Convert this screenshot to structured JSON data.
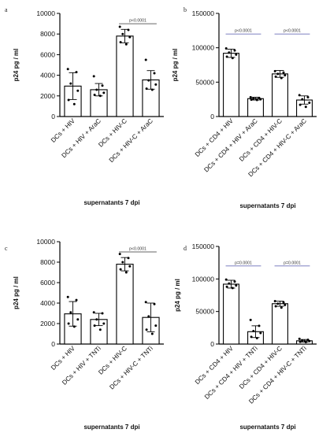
{
  "chart_data": [
    {
      "panel": "a",
      "type": "bar",
      "categories": [
        "DCs + HIV",
        "DCs + HIV + AraC",
        "DCs + HIV-C",
        "DCs + HIV-C + AraC"
      ],
      "values": [
        2950,
        2600,
        7800,
        3550
      ],
      "errors": [
        1300,
        600,
        650,
        900
      ],
      "points": [
        [
          4600,
          4300,
          3200,
          2500,
          1600,
          1200
        ],
        [
          3900,
          3000,
          2600,
          2300,
          2100,
          2000
        ],
        [
          8700,
          8400,
          8000,
          7700,
          7200,
          7000
        ],
        [
          5500,
          4200,
          3500,
          3100,
          2700,
          2600
        ]
      ],
      "ylabel": "p24 pg / ml",
      "xlabel": "supernatants 7 dpi",
      "ylim": [
        0,
        10000
      ],
      "yticks": [
        "0",
        "2000",
        "4000",
        "6000",
        "8000",
        "10000"
      ],
      "comparisons": [
        {
          "from": 2,
          "to": 3,
          "label": "p<0.0001",
          "y": 9000,
          "color": "#333333"
        }
      ]
    },
    {
      "panel": "b",
      "type": "bar",
      "categories": [
        "DCs + CD4 + HIV",
        "DCs + CD4 + HIV + AraC",
        "DCs + CD4 + HIV-C",
        "DCs + CD4 + HIV-C + AraC"
      ],
      "values": [
        92000,
        26000,
        62000,
        24000
      ],
      "errors": [
        6000,
        2000,
        5000,
        6000
      ],
      "points": [
        [
          99000,
          96000,
          93000,
          90000,
          87000,
          85000
        ],
        [
          28000,
          27000,
          26000,
          25000,
          24500,
          24000
        ],
        [
          66000,
          64000,
          62000,
          60000,
          58000,
          56000
        ],
        [
          31000,
          28000,
          25000,
          20000,
          17000,
          14000
        ]
      ],
      "ylabel": "p24 pg / ml",
      "xlabel": "supernatants 7 dpi",
      "ylim": [
        0,
        150000
      ],
      "yticks": [
        "0",
        "50000",
        "100000",
        "150000"
      ],
      "comparisons": [
        {
          "from": 0,
          "to": 1,
          "label": "p<0.0001",
          "y": 120000,
          "color": "#6b6fb8"
        },
        {
          "from": 2,
          "to": 3,
          "label": "p<0.0001",
          "y": 120000,
          "color": "#6b6fb8"
        }
      ]
    },
    {
      "panel": "c",
      "type": "bar",
      "categories": [
        "DCs + HIV",
        "DCs + HIV + TNTi",
        "DCs + HIV-C",
        "DCs + HIV-C + TNTi"
      ],
      "values": [
        2950,
        2400,
        7800,
        2600
      ],
      "errors": [
        1200,
        600,
        650,
        1400
      ],
      "points": [
        [
          4600,
          4300,
          3100,
          2400,
          2000,
          1700
        ],
        [
          3100,
          3000,
          2400,
          2000,
          1800,
          1400
        ],
        [
          8800,
          8400,
          8000,
          7600,
          7300,
          7000
        ],
        [
          4100,
          3900,
          2700,
          1800,
          1400,
          1000
        ]
      ],
      "ylabel": "p24 pg / ml",
      "xlabel": "supernatants 7 dpi",
      "ylim": [
        0,
        10000
      ],
      "yticks": [
        "0",
        "2000",
        "4000",
        "6000",
        "8000",
        "10000"
      ],
      "comparisons": [
        {
          "from": 2,
          "to": 3,
          "label": "p<0.0001",
          "y": 9000,
          "color": "#333333"
        }
      ]
    },
    {
      "panel": "d",
      "type": "bar",
      "categories": [
        "DCs + CD4 + HIV",
        "DCs + CD4 + HIV + TNTi",
        "DCs + CD4 + HIV-C",
        "DCs + CD4 + HIV-C + TNTi"
      ],
      "values": [
        92000,
        19000,
        62000,
        5000
      ],
      "errors": [
        6000,
        9000,
        4000,
        2000
      ],
      "points": [
        [
          99000,
          96000,
          93000,
          90000,
          88000,
          86000
        ],
        [
          37000,
          28000,
          20000,
          17000,
          11000,
          9000
        ],
        [
          66000,
          64000,
          62000,
          60000,
          58000,
          56000
        ],
        [
          8000,
          6500,
          5500,
          4500,
          3500,
          3000
        ]
      ],
      "ylabel": "p24 pg / ml",
      "xlabel": "supernatants 7 dpi",
      "ylim": [
        0,
        150000
      ],
      "yticks": [
        "0",
        "50000",
        "100000",
        "150000"
      ],
      "comparisons": [
        {
          "from": 0,
          "to": 1,
          "label": "p=0.0001",
          "y": 120000,
          "color": "#6b6fb8"
        },
        {
          "from": 2,
          "to": 3,
          "label": "p=0.0001",
          "y": 120000,
          "color": "#6b6fb8"
        }
      ]
    }
  ]
}
